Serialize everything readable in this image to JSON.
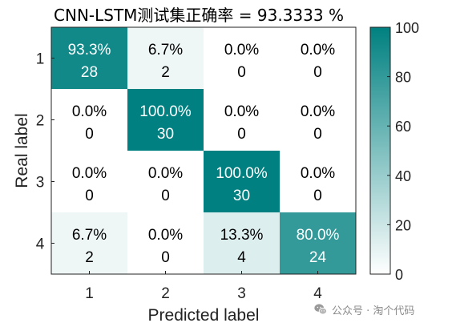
{
  "chart_data": {
    "type": "heatmap",
    "title": "CNN-LSTM测试集正确率 = 93.3333 %",
    "xlabel": "Predicted label",
    "ylabel": "Real label",
    "x_categories": [
      "1",
      "2",
      "3",
      "4"
    ],
    "y_categories": [
      "1",
      "2",
      "3",
      "4"
    ],
    "percent_labels": [
      [
        "93.3%",
        "6.7%",
        "0.0%",
        "0.0%"
      ],
      [
        "0.0%",
        "100.0%",
        "0.0%",
        "0.0%"
      ],
      [
        "0.0%",
        "0.0%",
        "100.0%",
        "0.0%"
      ],
      [
        "6.7%",
        "0.0%",
        "13.3%",
        "80.0%"
      ]
    ],
    "percent_values": [
      [
        93.3,
        6.7,
        0.0,
        0.0
      ],
      [
        0.0,
        100.0,
        0.0,
        0.0
      ],
      [
        0.0,
        0.0,
        100.0,
        0.0
      ],
      [
        6.7,
        0.0,
        13.3,
        80.0
      ]
    ],
    "counts": [
      [
        28,
        2,
        0,
        0
      ],
      [
        0,
        30,
        0,
        0
      ],
      [
        0,
        0,
        30,
        0
      ],
      [
        2,
        0,
        4,
        24
      ]
    ],
    "colorbar": {
      "min": 0,
      "max": 100,
      "ticks": [
        "0",
        "20",
        "40",
        "60",
        "80",
        "100"
      ]
    },
    "colors": {
      "low": "#ffffff",
      "high": "#008080"
    }
  },
  "watermark": {
    "icon": "wechat-icon",
    "text": "公众号 · 淘个代码"
  }
}
